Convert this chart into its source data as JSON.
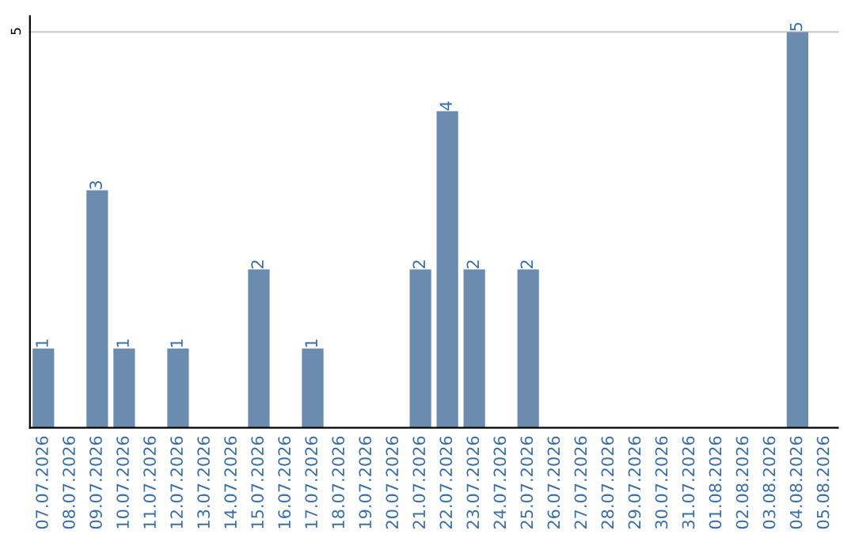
{
  "chart_data": {
    "type": "bar",
    "categories": [
      "07.07.2026",
      "08.07.2026",
      "09.07.2026",
      "10.07.2026",
      "11.07.2026",
      "12.07.2026",
      "13.07.2026",
      "14.07.2026",
      "15.07.2026",
      "16.07.2026",
      "17.07.2026",
      "18.07.2026",
      "19.07.2026",
      "20.07.2026",
      "21.07.2026",
      "22.07.2026",
      "23.07.2026",
      "24.07.2026",
      "25.07.2026",
      "26.07.2026",
      "27.07.2026",
      "28.07.2026",
      "29.07.2026",
      "30.07.2026",
      "31.07.2026",
      "01.08.2026",
      "02.08.2026",
      "03.08.2026",
      "04.08.2026",
      "05.08.2026"
    ],
    "values": [
      1,
      0,
      3,
      1,
      0,
      1,
      0,
      0,
      2,
      0,
      1,
      0,
      0,
      0,
      2,
      4,
      2,
      0,
      2,
      0,
      0,
      0,
      0,
      0,
      0,
      0,
      0,
      0,
      5,
      0
    ],
    "value_labels": [
      "1",
      null,
      "3",
      "1",
      null,
      "1",
      null,
      null,
      "2",
      null,
      "1",
      null,
      null,
      null,
      "2",
      "4",
      "2",
      null,
      "2",
      null,
      null,
      null,
      null,
      null,
      null,
      null,
      null,
      null,
      "5",
      null
    ],
    "color": "#6b8cae",
    "ylim": [
      0,
      5.2
    ],
    "yticks": [
      5
    ],
    "grid": "y"
  }
}
